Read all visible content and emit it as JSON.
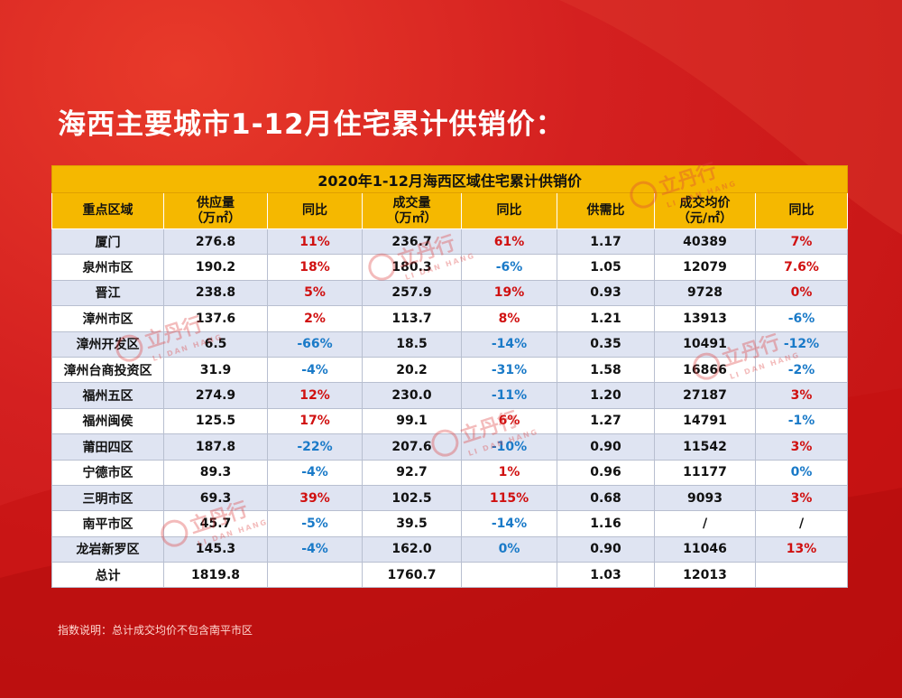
{
  "title": "海西主要城市1-12月住宅累计供销价：",
  "table": {
    "caption": "2020年1-12月海西区域住宅累计供销价",
    "headers": [
      {
        "line1": "重点区域",
        "line2": ""
      },
      {
        "line1": "供应量",
        "line2": "（万㎡）"
      },
      {
        "line1": "同比",
        "line2": ""
      },
      {
        "line1": "成交量",
        "line2": "（万㎡）"
      },
      {
        "line1": "同比",
        "line2": ""
      },
      {
        "line1": "供需比",
        "line2": ""
      },
      {
        "line1": "成交均价",
        "line2": "（元/㎡）"
      },
      {
        "line1": "同比",
        "line2": ""
      }
    ],
    "rows": [
      [
        "厦门",
        "276.8",
        "11%",
        "236.7",
        "61%",
        "1.17",
        "40389",
        "7%"
      ],
      [
        "泉州市区",
        "190.2",
        "18%",
        "180.3",
        "-6%",
        "1.05",
        "12079",
        "7.6%"
      ],
      [
        "晋江",
        "238.8",
        "5%",
        "257.9",
        "19%",
        "0.93",
        "9728",
        "0%"
      ],
      [
        "漳州市区",
        "137.6",
        "2%",
        "113.7",
        "8%",
        "1.21",
        "13913",
        "-6%"
      ],
      [
        "漳州开发区",
        "6.5",
        "-66%",
        "18.5",
        "-14%",
        "0.35",
        "10491",
        "-12%"
      ],
      [
        "漳州台商投资区",
        "31.9",
        "-4%",
        "20.2",
        "-31%",
        "1.58",
        "16866",
        "-2%"
      ],
      [
        "福州五区",
        "274.9",
        "12%",
        "230.0",
        "-11%",
        "1.20",
        "27187",
        "3%"
      ],
      [
        "福州闽侯",
        "125.5",
        "17%",
        "99.1",
        "6%",
        "1.27",
        "14791",
        "-1%"
      ],
      [
        "莆田四区",
        "187.8",
        "-22%",
        "207.6",
        "-10%",
        "0.90",
        "11542",
        "3%"
      ],
      [
        "宁德市区",
        "89.3",
        "-4%",
        "92.7",
        "1%",
        "0.96",
        "11177",
        "0%"
      ],
      [
        "三明市区",
        "69.3",
        "39%",
        "102.5",
        "115%",
        "0.68",
        "9093",
        "3%"
      ],
      [
        "南平市区",
        "45.7",
        "-5%",
        "39.5",
        "-14%",
        "1.16",
        "/",
        "/"
      ],
      [
        "龙岩新罗区",
        "145.3",
        "-4%",
        "162.0",
        "0%",
        "0.90",
        "11046",
        "13%"
      ],
      [
        "总计",
        "1819.8",
        "",
        "1760.7",
        "",
        "1.03",
        "12013",
        ""
      ]
    ],
    "cell_colors": [
      [
        "",
        "",
        "red",
        "",
        "red",
        "",
        "",
        "red"
      ],
      [
        "",
        "",
        "red",
        "",
        "blue",
        "",
        "",
        "red"
      ],
      [
        "",
        "",
        "red",
        "",
        "red",
        "",
        "",
        "red"
      ],
      [
        "",
        "",
        "red",
        "",
        "red",
        "",
        "",
        "blue"
      ],
      [
        "",
        "",
        "blue",
        "",
        "blue",
        "",
        "",
        "blue"
      ],
      [
        "",
        "",
        "blue",
        "",
        "blue",
        "",
        "",
        "blue"
      ],
      [
        "",
        "",
        "red",
        "",
        "blue",
        "",
        "",
        "red"
      ],
      [
        "",
        "",
        "red",
        "",
        "red",
        "",
        "",
        "blue"
      ],
      [
        "",
        "",
        "blue",
        "",
        "blue",
        "",
        "",
        "red"
      ],
      [
        "",
        "",
        "blue",
        "",
        "red",
        "",
        "",
        "blue"
      ],
      [
        "",
        "",
        "red",
        "",
        "red",
        "",
        "",
        "red"
      ],
      [
        "",
        "",
        "blue",
        "",
        "blue",
        "",
        "",
        ""
      ],
      [
        "",
        "",
        "blue",
        "",
        "blue",
        "",
        "",
        "red"
      ],
      [
        "",
        "",
        "",
        "",
        "",
        "",
        "",
        ""
      ]
    ]
  },
  "note": "指数说明：总计成交均价不包含南平市区",
  "watermark": {
    "name": "立丹行",
    "sub": "LI DAN HANG"
  },
  "colors": {
    "background": "#d01818",
    "header": "#f5b800",
    "odd_row": "#dfe4f2",
    "positive": "#d01010",
    "negative": "#1a7ac8"
  }
}
